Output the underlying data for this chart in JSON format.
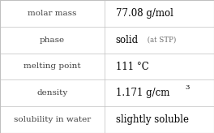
{
  "rows": [
    {
      "label": "molar mass",
      "value": "77.08 g/mol",
      "superscript": null,
      "suffix": null
    },
    {
      "label": "phase",
      "value": "solid",
      "superscript": null,
      "suffix": " (at STP)"
    },
    {
      "label": "melting point",
      "value": "111 °C",
      "superscript": null,
      "suffix": null
    },
    {
      "label": "density",
      "value": "1.171 g/cm",
      "superscript": "3",
      "suffix": null
    },
    {
      "label": "solubility in water",
      "value": "slightly soluble",
      "superscript": null,
      "suffix": null
    }
  ],
  "col_split": 0.49,
  "background_color": "#ffffff",
  "border_color": "#c0c0c0",
  "label_color": "#404040",
  "value_color": "#000000",
  "suffix_color": "#707070",
  "label_fontsize": 7.5,
  "value_fontsize": 8.5,
  "suffix_fontsize": 6.2,
  "superscript_fontsize": 6.0
}
